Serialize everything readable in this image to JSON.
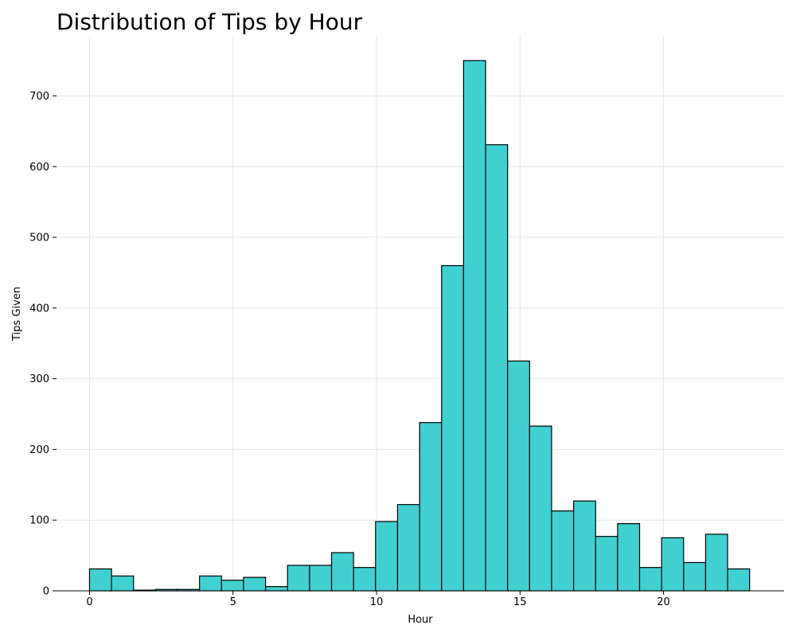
{
  "chart_data": {
    "type": "bar",
    "title": "Distribution of Tips by Hour",
    "xlabel": "Hour",
    "ylabel": "Tips Given",
    "xlim": [
      -1.15,
      24.2
    ],
    "ylim": [
      0,
      785
    ],
    "grid": true,
    "bar_color": "#40D0D0",
    "edge_color": "#000000",
    "bin_width": 0.7667,
    "x_ticks": [
      0,
      5,
      10,
      15,
      20
    ],
    "y_ticks": [
      0,
      100,
      200,
      300,
      400,
      500,
      600,
      700
    ],
    "bins_start": [
      0,
      0.7667,
      1.5333,
      2.3,
      3.0667,
      3.8333,
      4.6,
      5.3667,
      6.1333,
      6.9,
      7.6667,
      8.4333,
      9.2,
      9.9667,
      10.7333,
      11.5,
      12.2667,
      13.0333,
      13.8,
      14.5667,
      15.3333,
      16.1,
      16.8667,
      17.6333,
      18.4,
      19.1667,
      19.9333,
      20.7,
      21.4667,
      22.2333
    ],
    "values": [
      31,
      21,
      1,
      2,
      2,
      21,
      15,
      19,
      6,
      36,
      36,
      54,
      33,
      98,
      122,
      238,
      460,
      750,
      631,
      325,
      233,
      113,
      127,
      77,
      95,
      33,
      75,
      40,
      80,
      31
    ]
  }
}
